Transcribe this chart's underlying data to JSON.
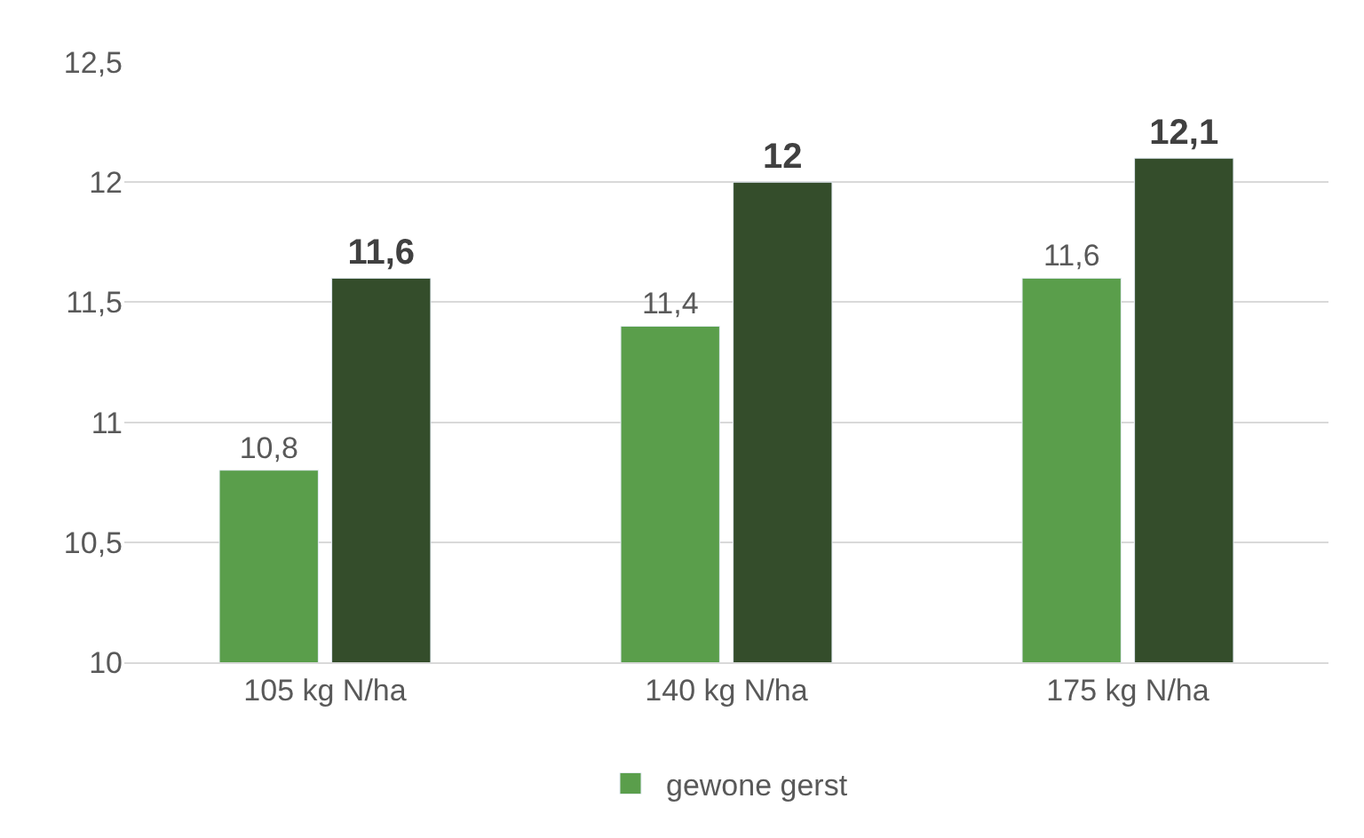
{
  "chart_data": {
    "type": "bar",
    "categories": [
      "105 kg N/ha",
      "140 kg N/ha",
      "175 kg N/ha"
    ],
    "series": [
      {
        "name": "gewone gerst",
        "color": "#5a9e4b",
        "values": [
          10.8,
          11.4,
          11.6
        ],
        "value_labels": [
          "10,8",
          "11,4",
          "11,6"
        ]
      },
      {
        "color": "#344d2b",
        "values": [
          11.6,
          12,
          12.1
        ],
        "value_labels": [
          "11,6",
          "12",
          "12,1"
        ]
      }
    ],
    "ylim": [
      10,
      12.5
    ],
    "yticks": [
      10,
      {
        "value": 10.5,
        "label": "10,5"
      },
      11,
      {
        "value": 11.5,
        "label": "11,5"
      },
      12,
      {
        "value": 12.5,
        "label": "12,5"
      }
    ],
    "grid": "y",
    "legend": "bottom"
  }
}
